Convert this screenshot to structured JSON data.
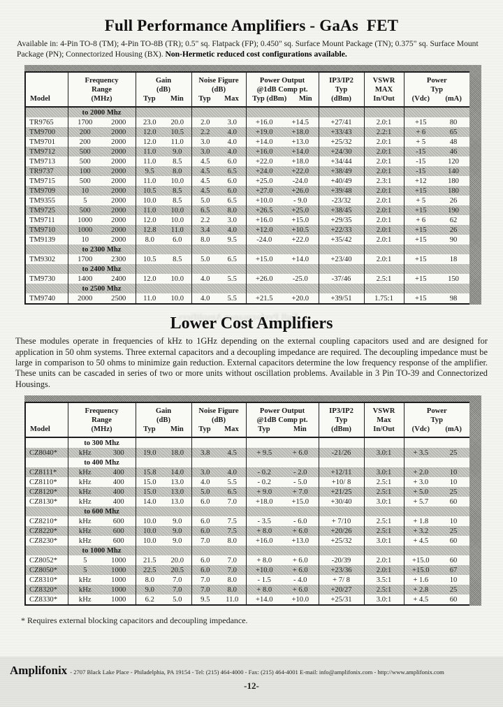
{
  "page": {
    "title1": "Full Performance Amplifiers - GaAs  FET",
    "intro1_normal": "Available in: 4-Pin TO-8 (TM); 4-Pin TO-8B (TR); 0.5\" sq. Flatpack (FP); 0.450\" sq. Surface Mount Package (TN); 0.375\" sq. Surface Mount Package (PN); Connectorized Housing (BX). ",
    "intro1_bold": "Non-Hermetic reduced cost configurations available.",
    "ghost_text": "Full Performance Amplifiers",
    "title2": "Lower Cost Amplifiers",
    "intro2": "These modules operate in frequencies of kHz to 1GHz depending on the external coupling capacitors used and are designed for application in 50 ohm systems. Three external capacitors and a decoupling impedance are required. The decoupling impedance must be large in comparison to 50 ohms to minimize gain reduction. External capacitors determine the low frequency response of the amplifier.  These units can be cascaded in series of two or more units without oscillation problems. Available in 3 Pin TO-39 and Connectorized Housings.",
    "footnote": "* Requires external blocking capacitors and decoupling impedance.",
    "footer_brand": "Amplifonix",
    "footer_info": "- 2707 Black Lake Place - Philadelphia, PA 19154 - Tel: (215) 464-4000 - Fax: (215) 464-4001 E-mail: info@amplifonix.com - http://www.amplifonix.com",
    "page_number": "-12-"
  },
  "tables": [
    {
      "shade_start": 0,
      "header": [
        {
          "lines": [
            "Model"
          ]
        },
        {
          "lines": [
            "Frequency",
            "Range",
            "(MHz)"
          ]
        },
        {
          "lines": [
            "Gain",
            "(dB)"
          ],
          "pair": [
            "Typ",
            "Min"
          ]
        },
        {
          "lines": [
            "Noise Figure",
            "(dB)"
          ],
          "pair": [
            "Typ",
            "Max"
          ]
        },
        {
          "lines": [
            "Power Output",
            "@1dB Comp pt."
          ],
          "pair": [
            "Typ (dBm)",
            "Min"
          ]
        },
        {
          "lines": [
            "IP3/IP2",
            "Typ",
            "(dBm)"
          ]
        },
        {
          "lines": [
            "VSWR",
            "MAX",
            "In/Out"
          ]
        },
        {
          "lines": [
            "Power",
            "Typ"
          ],
          "pair": [
            "(Vdc)",
            "(mA)"
          ]
        }
      ],
      "rows": [
        {
          "type": "section",
          "label": "to 2000 Mhz"
        },
        {
          "type": "data",
          "cells": [
            "TR9765",
            "1700",
            "2000",
            "23.0",
            "20.0",
            "2.0",
            "3.0",
            "+16.0",
            "+14.5",
            "+27/41",
            "2.0:1",
            "+15",
            "80"
          ]
        },
        {
          "type": "data",
          "cells": [
            "TM9700",
            "200",
            "2000",
            "12.0",
            "10.5",
            "2.2",
            "4.0",
            "+19.0",
            "+18.0",
            "+33/43",
            "2.2:1",
            "+ 6",
            "65"
          ]
        },
        {
          "type": "data",
          "cells": [
            "TM9701",
            "200",
            "2000",
            "12.0",
            "11.0",
            "3.0",
            "4.0",
            "+14.0",
            "+13.0",
            "+25/32",
            "2.0:1",
            "+ 5",
            "48"
          ]
        },
        {
          "type": "data",
          "cells": [
            "TM9712",
            "500",
            "2000",
            "11.0",
            "9.0",
            "3.0",
            "4.0",
            "+16.0",
            "+14.0",
            "+24/30",
            "2.0:1",
            "-15",
            "46"
          ]
        },
        {
          "type": "data",
          "cells": [
            "TM9713",
            "500",
            "2000",
            "11.0",
            "8.5",
            "4.5",
            "6.0",
            "+22.0",
            "+18.0",
            "+34/44",
            "2.0:1",
            "-15",
            "120"
          ]
        },
        {
          "type": "data",
          "cells": [
            "TR9737",
            "100",
            "2000",
            "9.5",
            "8.0",
            "4.5",
            "6.5",
            "+24.0",
            "+22.0",
            "+38/49",
            "2.0:1",
            "-15",
            "140"
          ]
        },
        {
          "type": "data",
          "cells": [
            "TM9715",
            "500",
            "2000",
            "11.0",
            "10.0",
            "4.5",
            "6.0",
            "+25.0",
            "-24.0",
            "+40/49",
            "2.3:1",
            "+12",
            "180"
          ]
        },
        {
          "type": "data",
          "cells": [
            "TM9709",
            "10",
            "2000",
            "10.5",
            "8.5",
            "4.5",
            "6.0",
            "+27.0",
            "+26.0",
            "+39/48",
            "2.0:1",
            "+15",
            "180"
          ]
        },
        {
          "type": "data",
          "cells": [
            "TM9355",
            "5",
            "2000",
            "10.0",
            "8.5",
            "5.0",
            "6.5",
            "+10.0",
            "- 9.0",
            "-23/32",
            "2.0:1",
            "+ 5",
            "26"
          ]
        },
        {
          "type": "data",
          "cells": [
            "TM9725",
            "500",
            "2000",
            "11.0",
            "10.0",
            "6.5",
            "8.0",
            "+26.5",
            "+25.0",
            "+38/45",
            "2.0:1",
            "+15",
            "190"
          ]
        },
        {
          "type": "data",
          "cells": [
            "TM9711",
            "1000",
            "2000",
            "12.0",
            "10.0",
            "2.2",
            "3.0",
            "+16.0",
            "+15.0",
            "+29/35",
            "2.0:1",
            "+ 6",
            "62"
          ]
        },
        {
          "type": "data",
          "cells": [
            "TM9710",
            "1000",
            "2000",
            "12.8",
            "11.0",
            "3.4",
            "4.0",
            "+12.0",
            "+10.5",
            "+22/33",
            "2.0:1",
            "+15",
            "26"
          ]
        },
        {
          "type": "data",
          "cells": [
            "TM9139",
            "10",
            "2000",
            "8.0",
            "6.0",
            "8.0",
            "9.5",
            "-24.0",
            "+22.0",
            "+35/42",
            "2.0:1",
            "+15",
            "90"
          ]
        },
        {
          "type": "section",
          "label": "to 2300 Mhz"
        },
        {
          "type": "data",
          "cells": [
            "TM9302",
            "1700",
            "2300",
            "10.5",
            "8.5",
            "5.0",
            "6.5",
            "+15.0",
            "+14.0",
            "+23/40",
            "2.0:1",
            "+15",
            "18"
          ]
        },
        {
          "type": "section",
          "label": "to 2400 Mhz"
        },
        {
          "type": "data",
          "cells": [
            "TM9730",
            "1400",
            "2400",
            "12.0",
            "10.0",
            "4.0",
            "5.5",
            "+26.0",
            "-25.0",
            "-37/46",
            "2.5:1",
            "+15",
            "150"
          ]
        },
        {
          "type": "section",
          "label": "to 2500 Mhz"
        },
        {
          "type": "data",
          "cells": [
            "TM9740",
            "2000",
            "2500",
            "11.0",
            "10.0",
            "4.0",
            "5.5",
            "+21.5",
            "+20.0",
            "+39/51",
            "1.75:1",
            "+15",
            "98"
          ]
        }
      ]
    },
    {
      "shade_start": 1,
      "header": [
        {
          "lines": [
            "Model"
          ]
        },
        {
          "lines": [
            "Frequency",
            "Range",
            "(MHz)"
          ]
        },
        {
          "lines": [
            "Gain",
            "(dB)"
          ],
          "pair": [
            "Typ",
            "Min"
          ]
        },
        {
          "lines": [
            "Noise Figure",
            "(dB)"
          ],
          "pair": [
            "Typ",
            "Max"
          ]
        },
        {
          "lines": [
            "Power Output",
            "@1dB Comp pt."
          ],
          "pair": [
            "Typ",
            "Min"
          ]
        },
        {
          "lines": [
            "IP3/IP2",
            "Typ",
            "(dBm)"
          ]
        },
        {
          "lines": [
            "VSWR",
            "Max",
            "In/Out"
          ]
        },
        {
          "lines": [
            "Power",
            "Typ"
          ],
          "pair": [
            "(Vdc)",
            "(mA)"
          ]
        }
      ],
      "rows": [
        {
          "type": "section",
          "label": "to 300 Mhz"
        },
        {
          "type": "data",
          "cells": [
            "CZ8040*",
            "kHz",
            "300",
            "19.0",
            "18.0",
            "3.8",
            "4.5",
            "+ 9.5",
            "+ 6.0",
            "-21/26",
            "3.0:1",
            "+ 3.5",
            "25"
          ]
        },
        {
          "type": "section",
          "label": "to 400 Mhz"
        },
        {
          "type": "data",
          "cells": [
            "CZ8111*",
            "kHz",
            "400",
            "15.8",
            "14.0",
            "3.0",
            "4.0",
            "- 0.2",
            "- 2.0",
            "+12/11",
            "3.0:1",
            "+ 2.0",
            "10"
          ]
        },
        {
          "type": "data",
          "cells": [
            "CZ8110*",
            "kHz",
            "400",
            "15.0",
            "13.0",
            "4.0",
            "5.5",
            "- 0.2",
            "- 5.0",
            "+10/ 8",
            "2.5:1",
            "+ 3.0",
            "10"
          ]
        },
        {
          "type": "data",
          "cells": [
            "CZ8120*",
            "kHz",
            "400",
            "15.0",
            "13.0",
            "5.0",
            "6.5",
            "+ 9.0",
            "+ 7.0",
            "+21/25",
            "2.5:1",
            "+ 5.0",
            "25"
          ]
        },
        {
          "type": "data",
          "cells": [
            "CZ8130*",
            "kHz",
            "400",
            "14.0",
            "13.0",
            "6.0",
            "7.0",
            "+18.0",
            "+15.0",
            "+30/40",
            "3.0:1",
            "+ 5.7",
            "60"
          ]
        },
        {
          "type": "section",
          "label": "to 600 Mhz"
        },
        {
          "type": "data",
          "cells": [
            "CZ8210*",
            "kHz",
            "600",
            "10.0",
            "9.0",
            "6.0",
            "7.5",
            "- 3.5",
            "- 6.0",
            "+ 7/10",
            "2.5:1",
            "+ 1.8",
            "10"
          ]
        },
        {
          "type": "data",
          "cells": [
            "CZ8220*",
            "kHz",
            "600",
            "10.0",
            "9.0",
            "6.0",
            "7.5",
            "+ 8.0",
            "+ 6.0",
            "+20/26",
            "2.5:1",
            "+ 3.2",
            "25"
          ]
        },
        {
          "type": "data",
          "cells": [
            "CZ8230*",
            "kHz",
            "600",
            "10.0",
            "9.0",
            "7.0",
            "8.0",
            "+16.0",
            "+13.0",
            "+25/32",
            "3.0:1",
            "+ 4.5",
            "60"
          ]
        },
        {
          "type": "section",
          "label": "to 1000 Mhz"
        },
        {
          "type": "data",
          "cells": [
            "CZ8052*",
            "5",
            "1000",
            "21.5",
            "20.0",
            "6.0",
            "7.0",
            "+ 8.0",
            "+ 6.0",
            "-20/39",
            "2.0:1",
            "+15.0",
            "60"
          ]
        },
        {
          "type": "data",
          "cells": [
            "CZ8050*",
            "5",
            "1000",
            "22.5",
            "20.5",
            "6.0",
            "7.0",
            "+10.0",
            "+ 6.0",
            "+23/36",
            "2.0:1",
            "+15.0",
            "67"
          ]
        },
        {
          "type": "data",
          "cells": [
            "CZ8310*",
            "kHz",
            "1000",
            "8.0",
            "7.0",
            "7.0",
            "8.0",
            "- 1.5",
            "- 4.0",
            "+ 7/ 8",
            "3.5:1",
            "+ 1.6",
            "10"
          ]
        },
        {
          "type": "data",
          "cells": [
            "CZ8320*",
            "kHz",
            "1000",
            "9.0",
            "7.0",
            "7.0",
            "8.0",
            "+ 8.0",
            "+ 6.0",
            "+20/27",
            "2.5:1",
            "+ 2.8",
            "25"
          ]
        },
        {
          "type": "data",
          "cells": [
            "CZ8330*",
            "kHz",
            "1000",
            "6.2",
            "5.0",
            "9.5",
            "11.0",
            "+14.0",
            "+10.0",
            "+25/31",
            "3.0:1",
            "+ 4.5",
            "60"
          ]
        }
      ]
    }
  ]
}
